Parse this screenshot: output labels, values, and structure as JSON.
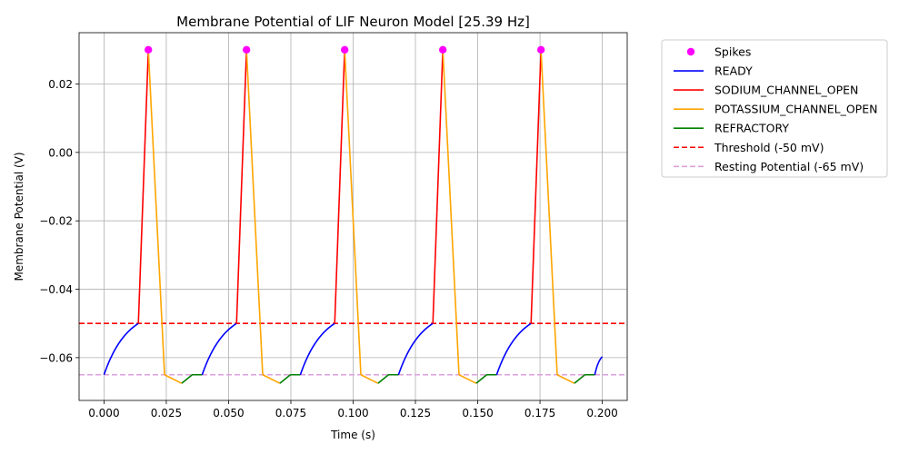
{
  "chart_data": {
    "type": "line",
    "title": "Membrane Potential of LIF Neuron Model [25.39 Hz]",
    "xlabel": "Time (s)",
    "ylabel": "Membrane Potential (V)",
    "xlim": [
      -0.01,
      0.21
    ],
    "ylim": [
      -0.0725,
      0.035
    ],
    "grid": true,
    "legend_position": "outside-top-right",
    "x_ticks": [
      0.0,
      0.025,
      0.05,
      0.075,
      0.1,
      0.125,
      0.15,
      0.175,
      0.2
    ],
    "x_tick_labels": [
      "0.000",
      "0.025",
      "0.050",
      "0.075",
      "0.100",
      "0.125",
      "0.150",
      "0.175",
      "0.200"
    ],
    "y_ticks": [
      -0.06,
      -0.04,
      -0.02,
      0.0,
      0.02
    ],
    "y_tick_labels": [
      "−0.06",
      "−0.04",
      "−0.02",
      "0.00",
      "0.02"
    ],
    "spikes": {
      "name": "Spikes",
      "color": "#ff00ff",
      "x": [
        0.0178,
        0.0572,
        0.0966,
        0.136,
        0.1754
      ],
      "y": [
        0.03,
        0.03,
        0.03,
        0.03,
        0.03
      ]
    },
    "cycles": [
      {
        "start": 0.0,
        "ready_end": 0.0138,
        "peak": 0.0178,
        "k_end": 0.0243,
        "refr_min": 0.0312,
        "refr_end": 0.0354,
        "next": 0.0394
      },
      {
        "start": 0.0394,
        "ready_end": 0.0532,
        "peak": 0.0572,
        "k_end": 0.0637,
        "refr_min": 0.0706,
        "refr_end": 0.0748,
        "next": 0.0788
      },
      {
        "start": 0.0788,
        "ready_end": 0.0926,
        "peak": 0.0966,
        "k_end": 0.1031,
        "refr_min": 0.11,
        "refr_end": 0.1142,
        "next": 0.1182
      },
      {
        "start": 0.1182,
        "ready_end": 0.132,
        "peak": 0.136,
        "k_end": 0.1425,
        "refr_min": 0.1494,
        "refr_end": 0.1536,
        "next": 0.1576
      },
      {
        "start": 0.1576,
        "ready_end": 0.1714,
        "peak": 0.1754,
        "k_end": 0.1819,
        "refr_min": 0.1888,
        "refr_end": 0.193,
        "next": 0.197
      }
    ],
    "tail": {
      "start": 0.197,
      "end": 0.2,
      "end_value": -0.0597
    },
    "levels": {
      "reset": -0.065,
      "threshold": -0.05,
      "peak": 0.03,
      "refractory_min": -0.0675
    },
    "series": [
      {
        "name": "READY",
        "color": "#0000ff",
        "style": "solid"
      },
      {
        "name": "SODIUM_CHANNEL_OPEN",
        "color": "#ff0000",
        "style": "solid"
      },
      {
        "name": "POTASSIUM_CHANNEL_OPEN",
        "color": "#ffa500",
        "style": "solid"
      },
      {
        "name": "REFRACTORY",
        "color": "#008000",
        "style": "solid"
      }
    ],
    "reference_lines": [
      {
        "name": "Threshold (-50 mV)",
        "y": -0.05,
        "color": "#ff0000",
        "style": "dashed"
      },
      {
        "name": "Resting Potential (-65 mV)",
        "y": -0.065,
        "color": "#dda0dd",
        "style": "dashed"
      }
    ],
    "legend_items": [
      "Spikes",
      "READY",
      "SODIUM_CHANNEL_OPEN",
      "POTASSIUM_CHANNEL_OPEN",
      "REFRACTORY",
      "Threshold (-50 mV)",
      "Resting Potential (-65 mV)"
    ]
  }
}
